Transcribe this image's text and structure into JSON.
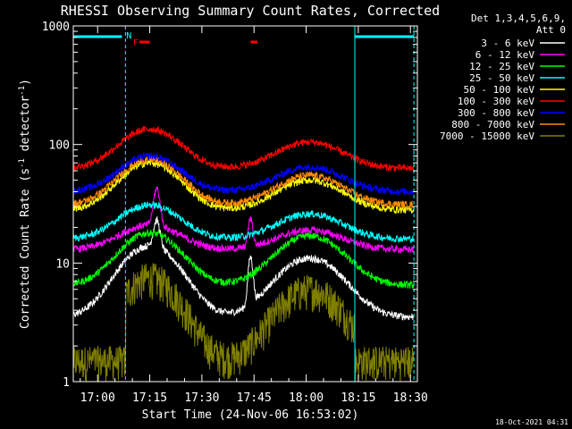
{
  "chart_data": {
    "type": "line",
    "title": "RHESSI Observing Summary Count Rates, Corrected",
    "xlabel": "Start Time (24-Nov-06 16:53:02)",
    "ylabel": "Corrected Count Rate (s",
    "ylabel_sup1": "-1",
    "ylabel_mid": " detector",
    "ylabel_sup2": "-1",
    "ylabel_end": ")",
    "xlim_minutes": [
      1013,
      1112
    ],
    "ylim": [
      1,
      1000
    ],
    "yscale": "log",
    "x_ticks": [
      {
        "label": "17:00",
        "minute": 1020
      },
      {
        "label": "17:15",
        "minute": 1035
      },
      {
        "label": "17:30",
        "minute": 1050
      },
      {
        "label": "17:45",
        "minute": 1065
      },
      {
        "label": "18:00",
        "minute": 1080
      },
      {
        "label": "18:15",
        "minute": 1095
      },
      {
        "label": "18:30",
        "minute": 1110
      }
    ],
    "y_ticks": [
      {
        "label": "1",
        "value": 1
      },
      {
        "label": "10",
        "value": 10
      },
      {
        "label": "100",
        "value": 100
      },
      {
        "label": "1000",
        "value": 1000
      }
    ],
    "legend_header": [
      "Det 1,3,4,5,6,9,",
      "Att 0"
    ],
    "legend_position": "right",
    "series": [
      {
        "name": "3 - 6 keV",
        "color": "#ffffff",
        "base": 3.5,
        "peak1": 14,
        "peak2": 11,
        "spike": {
          "minute": 1037,
          "value": 24
        },
        "spike2": {
          "minute": 1064,
          "value": 13
        }
      },
      {
        "name": "6 - 12 keV",
        "color": "#ff00ff",
        "base": 13,
        "peak1": 21,
        "peak2": 19,
        "spike": {
          "minute": 1037,
          "value": 45
        },
        "spike2": {
          "minute": 1064,
          "value": 26
        }
      },
      {
        "name": "12 - 25 keV",
        "color": "#00ff00",
        "base": 6.5,
        "peak1": 18,
        "peak2": 17
      },
      {
        "name": "25 - 50 keV",
        "color": "#00ffff",
        "base": 16,
        "peak1": 31,
        "peak2": 26
      },
      {
        "name": "50 - 100 keV",
        "color": "#ffff00",
        "base": 28,
        "peak1": 70,
        "peak2": 50
      },
      {
        "name": "100 - 300 keV",
        "color": "#ff0000",
        "base": 63,
        "peak1": 135,
        "peak2": 105
      },
      {
        "name": "300 - 800 keV",
        "color": "#0000ff",
        "base": 40,
        "peak1": 80,
        "peak2": 65
      },
      {
        "name": "800 - 7000 keV",
        "color": "#ff8c00",
        "base": 31,
        "peak1": 75,
        "peak2": 55
      },
      {
        "name": "7000 - 15000 keV",
        "color": "#808000",
        "base": 1.4,
        "peak1": 7.5,
        "peak2": 6
      }
    ],
    "peak1_minute": 1035,
    "peak2_minute": 1081,
    "peak_width_minutes": 11,
    "quiet_start_minute": 1028,
    "quiet_end_minute": 1094,
    "markers": {
      "night_segments": [
        [
          1013,
          1027
        ],
        [
          1094,
          1111
        ]
      ],
      "vertical_lines": [
        1028,
        1094,
        1111
      ],
      "N_label": "N",
      "N_minute": 1029,
      "F_label": "F",
      "F_minute": 1031,
      "flare_segments": [
        [
          1032,
          1035
        ],
        [
          1064,
          1066
        ]
      ]
    }
  },
  "footer": {
    "timestamp": "18-Oct-2021 04:31"
  }
}
